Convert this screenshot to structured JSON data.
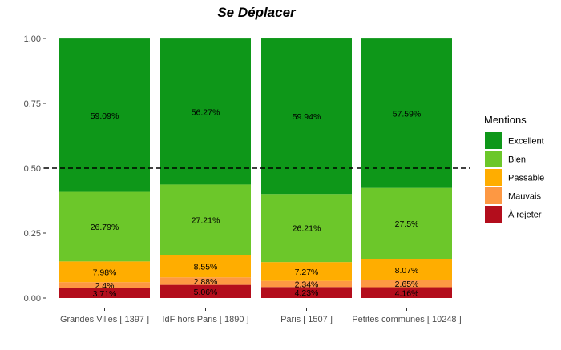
{
  "chart_data": {
    "type": "bar",
    "stacked": true,
    "title": "Se Déplacer",
    "xlabel": "",
    "ylabel": "",
    "ylim": [
      0,
      1
    ],
    "y_ticks": [
      "0.00",
      "0.25",
      "0.50",
      "0.75",
      "1.00"
    ],
    "y_tick_values": [
      0,
      0.25,
      0.5,
      0.75,
      1
    ],
    "reference_line": {
      "y": 0.5,
      "style": "dashed"
    },
    "categories": [
      "Grandes Villes  [ 1397 ]",
      "IdF hors Paris  [ 1890 ]",
      "Paris  [ 1507 ]",
      "Petites communes  [ 10248 ]"
    ],
    "series": [
      {
        "name": "À rejeter",
        "color": "#b30d1c",
        "values": [
          0.0371,
          0.0506,
          0.0423,
          0.0416
        ],
        "labels": [
          "3.71%",
          "5.06%",
          "4.23%",
          "4.16%"
        ]
      },
      {
        "name": "Mauvais",
        "color": "#fd9843",
        "values": [
          0.024,
          0.0288,
          0.0234,
          0.0265
        ],
        "labels": [
          "2.4%",
          "2.88%",
          "2.34%",
          "2.65%"
        ]
      },
      {
        "name": "Passable",
        "color": "#ffad00",
        "values": [
          0.0798,
          0.0855,
          0.0727,
          0.0807
        ],
        "labels": [
          "7.98%",
          "8.55%",
          "7.27%",
          "8.07%"
        ]
      },
      {
        "name": "Bien",
        "color": "#6cc72a",
        "values": [
          0.2679,
          0.2721,
          0.2621,
          0.275
        ],
        "labels": [
          "26.79%",
          "27.21%",
          "26.21%",
          "27.5%"
        ]
      },
      {
        "name": "Excellent",
        "color": "#0e9719",
        "values": [
          0.5909,
          0.5627,
          0.5994,
          0.5759
        ],
        "labels": [
          "59.09%",
          "56.27%",
          "59.94%",
          "57.59%"
        ]
      }
    ],
    "legend": {
      "title": "Mentions",
      "position": "right",
      "order": [
        "Excellent",
        "Bien",
        "Passable",
        "Mauvais",
        "À rejeter"
      ]
    },
    "grid": false
  }
}
